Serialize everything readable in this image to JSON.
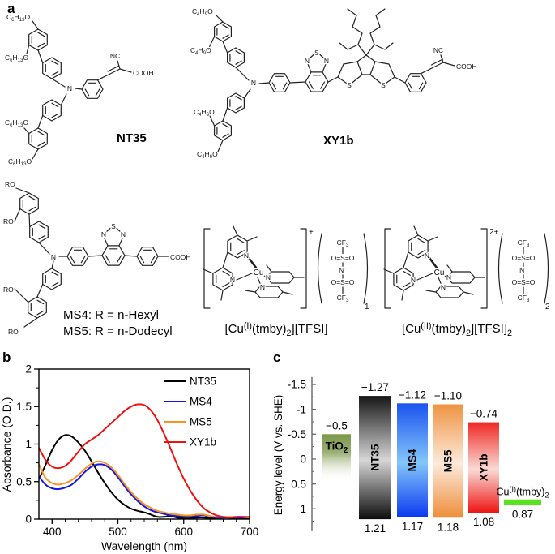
{
  "panels": {
    "a": "a",
    "b": "b",
    "c": "c"
  },
  "molecules": {
    "nt35": {
      "name": "NT35",
      "alkoxy": "C_6_H_13_O",
      "n": "N",
      "nc": "NC",
      "cooh": "COOH"
    },
    "xy1b": {
      "name": "XY1b",
      "alkoxy": "C_4_H_9_O",
      "n": "N",
      "s": "S",
      "nc": "NC",
      "cooh": "COOH"
    },
    "ms": {
      "r": "RO",
      "n": "N",
      "s": "S",
      "cooh": "COOH",
      "variant1": "MS4: R = n-Hexyl",
      "variant2": "MS5: R = n-Dodecyl"
    },
    "cu1": {
      "cu": "Cu",
      "n": "N",
      "charge": "+",
      "anion_count": "1",
      "caption": "[Cu^(I)^(tmby)_2_][TFSI]",
      "tfsi": [
        "CF_3_",
        "O=S=O",
        "N^−^",
        "O=S=O",
        "CF_3_"
      ]
    },
    "cu2": {
      "cu": "Cu",
      "n": "N",
      "charge": "2+",
      "anion_count": "2",
      "caption": "[Cu^(II)^(tmby)_2_][TFSI]_2_",
      "tfsi": [
        "CF_3_",
        "O=S=O",
        "N^−^",
        "O=S=O",
        "CF_3_"
      ]
    }
  },
  "chart_data": [
    {
      "id": "uvvis-absorbance",
      "type": "line",
      "title": "",
      "xlabel": "Wavelength (nm)",
      "ylabel": "Absorbance (O.D.)",
      "xlim": [
        380,
        700
      ],
      "ylim": [
        0,
        2
      ],
      "xticks": [
        400,
        500,
        600,
        700
      ],
      "xtick_labels": [
        "400",
        "500",
        "600",
        "700"
      ],
      "x_minor_step": 20,
      "yticks": [
        0,
        0.5,
        1,
        1.5,
        2
      ],
      "ytick_labels": [
        "0",
        "0.5",
        "1",
        "1.5",
        "2"
      ],
      "y_minor_step": 0.25,
      "grid": false,
      "legend_position": "top-right",
      "x_start": 380,
      "x_step": 10,
      "series": [
        {
          "name": "NT35",
          "color": "#000000",
          "y": [
            0.53,
            0.72,
            0.92,
            1.06,
            1.12,
            1.1,
            1.02,
            0.91,
            0.77,
            0.62,
            0.48,
            0.36,
            0.26,
            0.19,
            0.14,
            0.11,
            0.09,
            0.06,
            0.03,
            0.03,
            0.04,
            0.02,
            0.01,
            0.01,
            0.02,
            0.02,
            0.01,
            0.01,
            0.02,
            0.02,
            0.01,
            0.01,
            0.01
          ]
        },
        {
          "name": "MS4",
          "color": "#1515e6",
          "y": [
            0.57,
            0.46,
            0.41,
            0.4,
            0.42,
            0.46,
            0.54,
            0.63,
            0.7,
            0.73,
            0.72,
            0.66,
            0.56,
            0.44,
            0.33,
            0.24,
            0.17,
            0.12,
            0.09,
            0.07,
            0.05,
            0.04,
            0.04,
            0.03,
            0.04,
            0.05,
            0.03,
            0.02,
            0.02,
            0.02,
            0.02,
            0.02,
            0.02
          ]
        },
        {
          "name": "MS5",
          "color": "#f79322",
          "y": [
            0.73,
            0.55,
            0.48,
            0.46,
            0.48,
            0.52,
            0.59,
            0.67,
            0.74,
            0.77,
            0.75,
            0.69,
            0.59,
            0.47,
            0.36,
            0.27,
            0.2,
            0.15,
            0.11,
            0.09,
            0.07,
            0.06,
            0.05,
            0.05,
            0.06,
            0.06,
            0.04,
            0.03,
            0.03,
            0.03,
            0.03,
            0.03,
            0.02
          ]
        },
        {
          "name": "XY1b",
          "color": "#ee1111",
          "y": [
            0.95,
            0.79,
            0.7,
            0.68,
            0.71,
            0.79,
            0.9,
            1.0,
            1.06,
            1.12,
            1.2,
            1.28,
            1.36,
            1.44,
            1.5,
            1.53,
            1.52,
            1.45,
            1.32,
            1.14,
            0.94,
            0.73,
            0.54,
            0.38,
            0.25,
            0.15,
            0.09,
            0.05,
            0.03,
            0.02,
            0.03,
            0.03,
            0.03
          ]
        }
      ]
    },
    {
      "id": "energy-levels",
      "type": "bar",
      "ylabel": "Energy level (V vs. SHE)",
      "ylim": [
        -1.65,
        1.45
      ],
      "yticks": [
        -1.5,
        -1,
        -0.5,
        0,
        0.5,
        1
      ],
      "ytick_labels": [
        "-1.5",
        "-1",
        "-0.5",
        "0",
        "0.5",
        "1"
      ],
      "y_minor_step": 0.25,
      "inverted_axis": true,
      "bars": [
        {
          "name": "TiO_2_",
          "top": -0.5,
          "top_label": "−0.5",
          "fade_bottom": 0.45,
          "color_top": "#7b974a",
          "rotated": false
        },
        {
          "name": "NT35",
          "top": -1.27,
          "bottom": 1.21,
          "top_label": "−1.27",
          "bottom_label": "1.21",
          "color_top": "#161616",
          "color_mid": "#d6d6d6",
          "color_bottom": "#0d0d0d",
          "rotated": true
        },
        {
          "name": "MS4",
          "top": -1.12,
          "bottom": 1.17,
          "top_label": "−1.12",
          "bottom_label": "1.17",
          "color_top": "#1a53f0",
          "color_mid": "#84c6f9",
          "color_bottom": "#0a3af0",
          "rotated": true
        },
        {
          "name": "MS5",
          "top": -1.1,
          "bottom": 1.18,
          "top_label": "−1.10",
          "bottom_label": "1.18",
          "color_top": "#ef9342",
          "color_mid": "#fceadb",
          "color_bottom": "#ee8e3a",
          "rotated": true
        },
        {
          "name": "XY1b",
          "top": -0.74,
          "bottom": 1.08,
          "top_label": "−0.74",
          "bottom_label": "1.08",
          "color_top": "#f02823",
          "color_mid": "#fadbd6",
          "color_bottom": "#ee1411",
          "rotated": true
        }
      ],
      "redox": {
        "name": "Cu^(I)^(tmby)_2_",
        "value": 0.87,
        "value_label": "0.87",
        "color": "#58e31f"
      }
    }
  ]
}
